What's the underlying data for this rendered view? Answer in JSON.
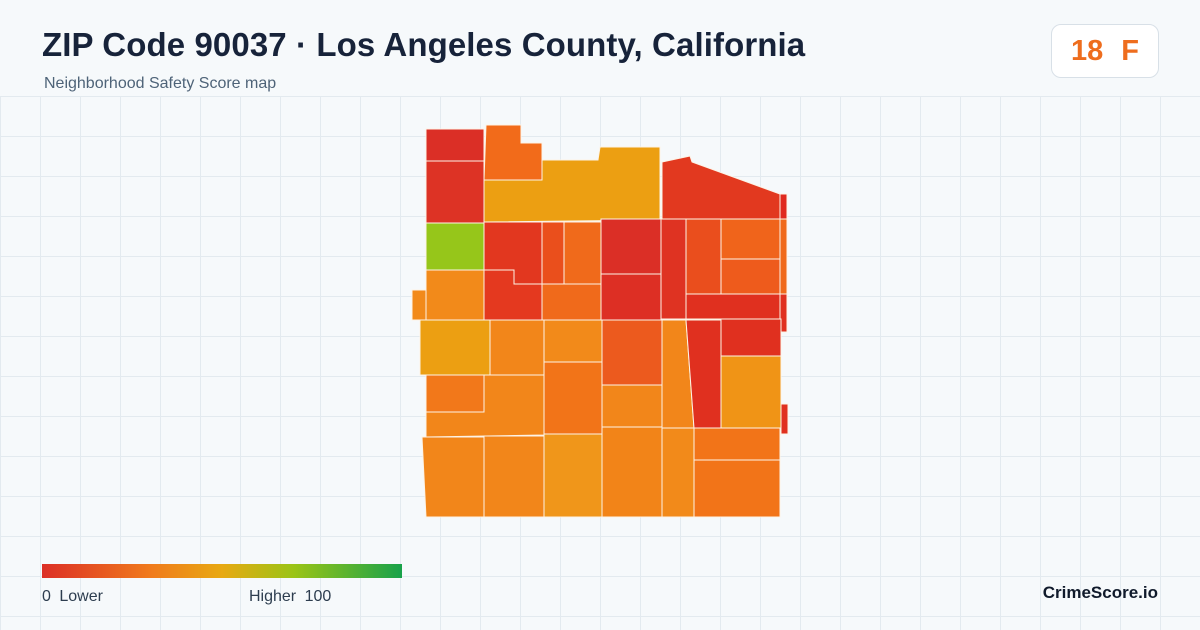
{
  "header": {
    "title": "ZIP Code 90037 · Los Angeles County, California",
    "subtitle": "Neighborhood Safety Score map"
  },
  "grade": {
    "score": "18",
    "letter": "F",
    "color": "#ee6d1e"
  },
  "legend": {
    "min_value": "0",
    "min_label": "Lower",
    "max_label": "Higher",
    "max_value": "100",
    "gradient_colors": [
      "#dc2f26",
      "#f07a1c",
      "#e8a912",
      "#9ac416",
      "#18a24a"
    ]
  },
  "brand": {
    "name": "CrimeScore.io"
  },
  "map": {
    "boundary_stroke": "#fdf3e6",
    "color_scale": {
      "very_low": "#db2f26",
      "low": "#e8431f",
      "mid_low": "#f26b1a",
      "mid": "#f2861a",
      "mid_high": "#ec9f12",
      "high": "#96c61a"
    }
  }
}
